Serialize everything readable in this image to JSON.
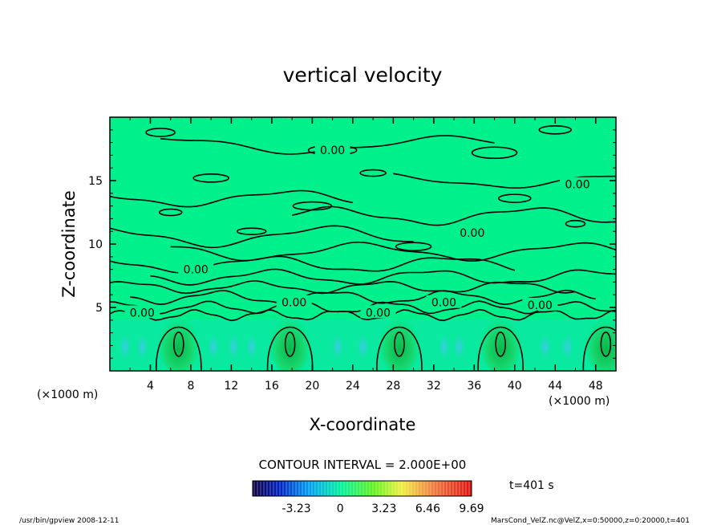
{
  "chart_data": {
    "type": "heatmap",
    "title": "vertical velocity",
    "xlabel": "X-coordinate",
    "ylabel": "Z-coordinate",
    "x_unit_left": "(×1000 m)",
    "x_unit_right": "(×1000 m)",
    "xlim": [
      0,
      50
    ],
    "ylim": [
      0,
      20
    ],
    "xticks": [
      4,
      8,
      12,
      16,
      20,
      24,
      28,
      32,
      36,
      40,
      44,
      48
    ],
    "yticks": [
      5,
      10,
      15
    ],
    "contour_labels": [
      {
        "text": "0.00",
        "x": 22.0,
        "z": 17.4
      },
      {
        "text": "0.00",
        "x": 46.2,
        "z": 14.7
      },
      {
        "text": "0.00",
        "x": 35.8,
        "z": 10.9
      },
      {
        "text": "0.00",
        "x": 8.5,
        "z": 8.0
      },
      {
        "text": "0.00",
        "x": 18.2,
        "z": 5.4
      },
      {
        "text": "0.00",
        "x": 3.2,
        "z": 4.6
      },
      {
        "text": "0.00",
        "x": 26.5,
        "z": 4.6
      },
      {
        "text": "0.00",
        "x": 33.0,
        "z": 5.4
      },
      {
        "text": "0.00",
        "x": 42.5,
        "z": 5.2
      }
    ],
    "updraft_cores_x": [
      6.8,
      17.8,
      28.6,
      38.6,
      49.0
    ],
    "contour_interval_text": "CONTOUR INTERVAL = 2.000E+00",
    "colorbar": {
      "ticks": [
        "-3.23",
        "0",
        "3.23",
        "6.46",
        "9.69"
      ],
      "tick_values": [
        -3.23,
        0,
        3.23,
        6.46,
        9.69
      ],
      "range": [
        -6.46,
        9.69
      ]
    },
    "time_label": "t=401 s",
    "colors": {
      "background_field": "#00f08c",
      "updraft": "#10d060",
      "downdraft": "#1ad8e8",
      "contour": "#000000"
    }
  },
  "footer": {
    "left": "/usr/bin/gpview  2008-12-11",
    "right": "MarsCond_VelZ.nc@VelZ,x=0:50000,z=0:20000,t=401"
  }
}
